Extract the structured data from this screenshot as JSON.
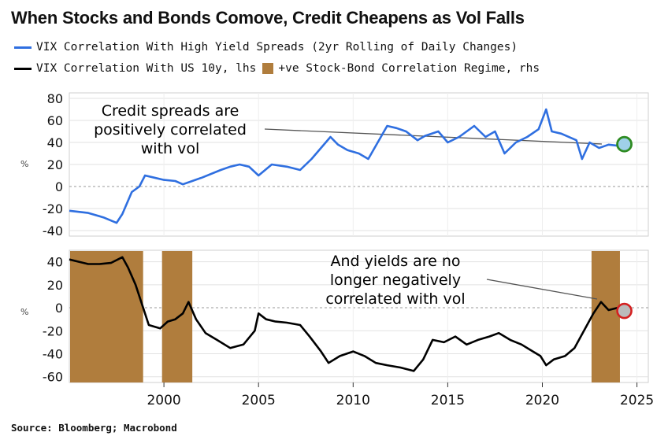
{
  "title": "When Stocks and Bonds Comove, Credit Cheapens as Vol Falls",
  "legend": {
    "hy": "VIX Correlation With High Yield Spreads (2yr Rolling of Daily Changes)",
    "us10": "VIX Correlation With US 10y, lhs",
    "regime": "+ve Stock-Bond Correlation Regime, rhs"
  },
  "source": "Source: Bloomberg; Macrobond",
  "unit_label": "%",
  "colors": {
    "hy": "#2f6fe0",
    "us10": "#000000",
    "regime": "#b07d3d",
    "green_marker": "#2e8b22",
    "red_marker": "#d42020"
  },
  "chart_data": [
    {
      "type": "line",
      "name": "top",
      "series": [
        {
          "name": "VIX Correlation With High Yield Spreads (2yr Rolling of Daily Changes)",
          "points": [
            [
              1995,
              -22
            ],
            [
              1996,
              -24
            ],
            [
              1996.8,
              -28
            ],
            [
              1997.5,
              -33
            ],
            [
              1997.8,
              -25
            ],
            [
              1998.3,
              -5
            ],
            [
              1998.7,
              0
            ],
            [
              1999,
              10
            ],
            [
              1999.5,
              8
            ],
            [
              2000,
              6
            ],
            [
              2000.6,
              5
            ],
            [
              2001,
              2
            ],
            [
              2001.5,
              5
            ],
            [
              2002,
              8
            ],
            [
              2003,
              15
            ],
            [
              2003.5,
              18
            ],
            [
              2004,
              20
            ],
            [
              2004.5,
              18
            ],
            [
              2005,
              10
            ],
            [
              2005.7,
              20
            ],
            [
              2006.5,
              18
            ],
            [
              2007.2,
              15
            ],
            [
              2007.8,
              25
            ],
            [
              2008.3,
              35
            ],
            [
              2008.8,
              45
            ],
            [
              2009.2,
              38
            ],
            [
              2009.7,
              33
            ],
            [
              2010.3,
              30
            ],
            [
              2010.8,
              25
            ],
            [
              2011.3,
              40
            ],
            [
              2011.8,
              55
            ],
            [
              2012.3,
              53
            ],
            [
              2012.8,
              50
            ],
            [
              2013.4,
              42
            ],
            [
              2013.8,
              46
            ],
            [
              2014.5,
              50
            ],
            [
              2015,
              40
            ],
            [
              2015.6,
              45
            ],
            [
              2016.4,
              55
            ],
            [
              2017,
              45
            ],
            [
              2017.5,
              50
            ],
            [
              2018,
              30
            ],
            [
              2018.6,
              40
            ],
            [
              2019.2,
              45
            ],
            [
              2019.8,
              52
            ],
            [
              2020.2,
              70
            ],
            [
              2020.5,
              50
            ],
            [
              2021,
              48
            ],
            [
              2021.8,
              42
            ],
            [
              2022.1,
              25
            ],
            [
              2022.5,
              40
            ],
            [
              2023,
              35
            ],
            [
              2023.5,
              38
            ],
            [
              2024,
              37
            ]
          ]
        }
      ],
      "annotation": "Credit spreads are positively correlated with vol",
      "ylim": [
        -45,
        85
      ],
      "yticks": [
        -40,
        -20,
        0,
        20,
        40,
        60,
        80
      ],
      "ylabel": "%"
    },
    {
      "type": "line",
      "name": "bottom",
      "series": [
        {
          "name": "VIX Correlation With US 10y, lhs",
          "points": [
            [
              1995,
              42
            ],
            [
              1995.5,
              40
            ],
            [
              1996,
              38
            ],
            [
              1996.6,
              38
            ],
            [
              1997.2,
              39
            ],
            [
              1997.8,
              44
            ],
            [
              1998.1,
              35
            ],
            [
              1998.5,
              20
            ],
            [
              1998.8,
              5
            ],
            [
              1999.2,
              -15
            ],
            [
              1999.8,
              -18
            ],
            [
              2000.2,
              -12
            ],
            [
              2000.6,
              -10
            ],
            [
              2001,
              -5
            ],
            [
              2001.3,
              5
            ],
            [
              2001.7,
              -10
            ],
            [
              2002.2,
              -22
            ],
            [
              2002.8,
              -28
            ],
            [
              2003.5,
              -35
            ],
            [
              2004.2,
              -32
            ],
            [
              2004.8,
              -20
            ],
            [
              2005,
              -5
            ],
            [
              2005.4,
              -10
            ],
            [
              2005.9,
              -12
            ],
            [
              2006.5,
              -13
            ],
            [
              2007.2,
              -15
            ],
            [
              2007.7,
              -25
            ],
            [
              2008.3,
              -38
            ],
            [
              2008.7,
              -48
            ],
            [
              2009.3,
              -42
            ],
            [
              2010,
              -38
            ],
            [
              2010.6,
              -42
            ],
            [
              2011.2,
              -48
            ],
            [
              2011.8,
              -50
            ],
            [
              2012.5,
              -52
            ],
            [
              2013.2,
              -55
            ],
            [
              2013.7,
              -45
            ],
            [
              2014.2,
              -28
            ],
            [
              2014.8,
              -30
            ],
            [
              2015.4,
              -25
            ],
            [
              2016,
              -32
            ],
            [
              2016.6,
              -28
            ],
            [
              2017.2,
              -25
            ],
            [
              2017.7,
              -22
            ],
            [
              2018.3,
              -28
            ],
            [
              2018.9,
              -32
            ],
            [
              2019.5,
              -38
            ],
            [
              2019.9,
              -42
            ],
            [
              2020.2,
              -50
            ],
            [
              2020.6,
              -45
            ],
            [
              2021.2,
              -42
            ],
            [
              2021.7,
              -35
            ],
            [
              2022.2,
              -20
            ],
            [
              2022.7,
              -5
            ],
            [
              2023.1,
              5
            ],
            [
              2023.5,
              -2
            ],
            [
              2024,
              0
            ]
          ]
        }
      ],
      "regimes": [
        [
          1994.9,
          1998.9
        ],
        [
          1999.9,
          2001.5
        ],
        [
          2022.6,
          2024.1
        ]
      ],
      "annotation": "And yields are no longer negatively correlated with vol",
      "ylim": [
        -65,
        50
      ],
      "yticks": [
        -60,
        -40,
        -20,
        0,
        20,
        40
      ],
      "ylabel": "%"
    }
  ],
  "x_axis": {
    "xlim": [
      1995,
      2025.6
    ],
    "ticks": [
      2000,
      2005,
      2010,
      2015,
      2020,
      2025
    ]
  }
}
